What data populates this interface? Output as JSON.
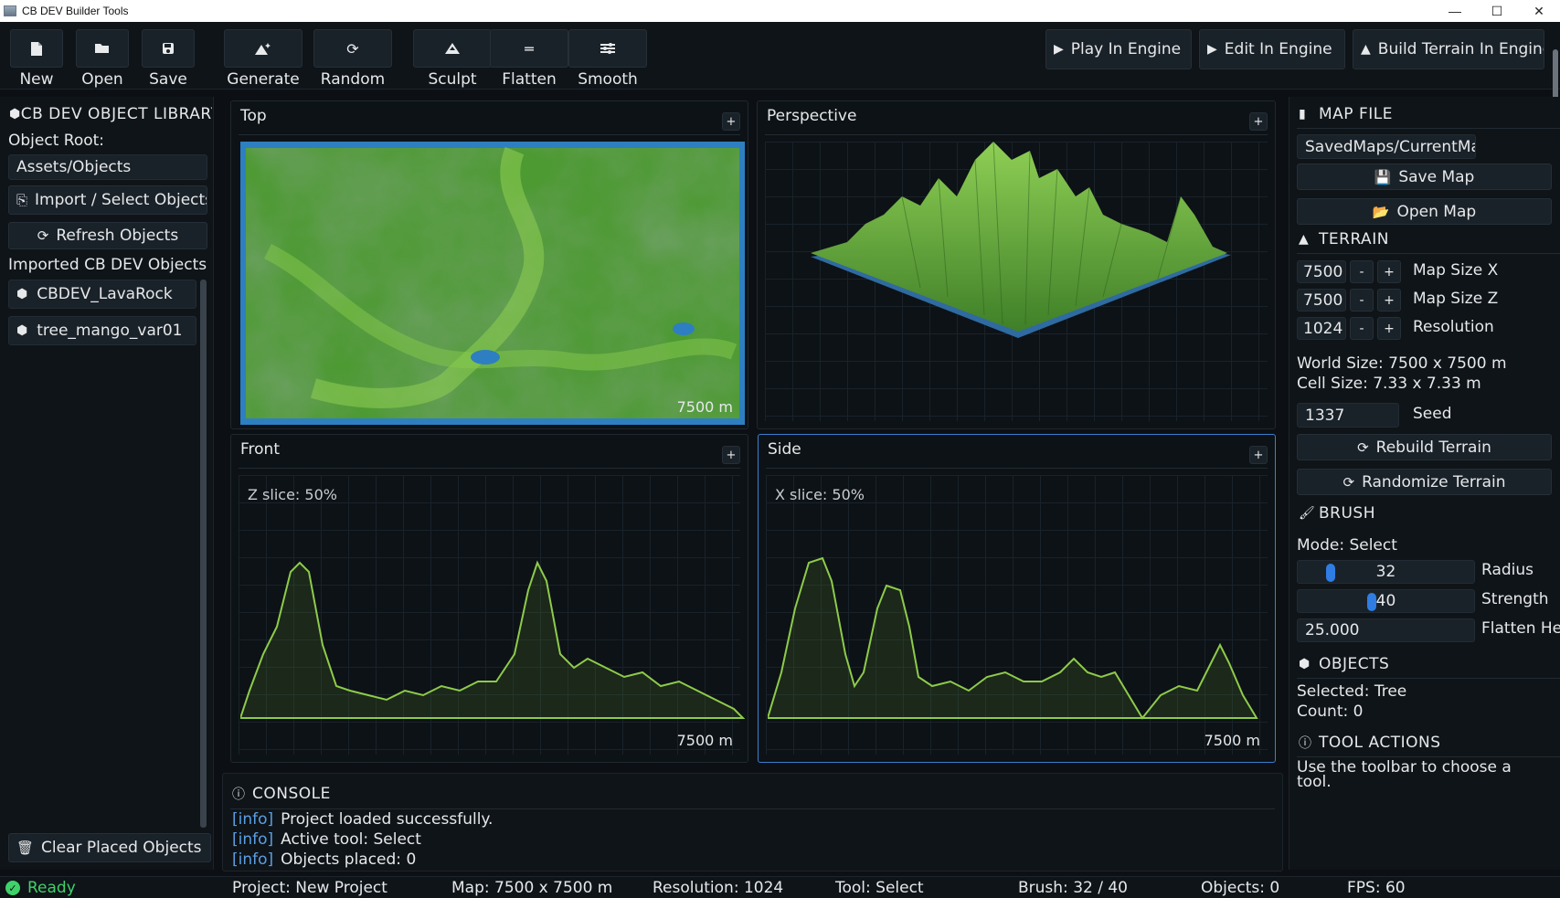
{
  "window": {
    "title": "CB DEV Builder Tools",
    "min": "—",
    "max": "☐",
    "close": "✕"
  },
  "toolbar": {
    "new": "New",
    "open": "Open",
    "save": "Save",
    "generate": "Generate",
    "random": "Random",
    "sculpt": "Sculpt",
    "flatten": "Flatten",
    "smooth": "Smooth",
    "play": "Play In Engine",
    "edit": "Edit In Engine",
    "build": "Build Terrain In Engine"
  },
  "library": {
    "title": "CB DEV OBJECT LIBRARY",
    "root_label": "Object Root:",
    "root_value": "Assets/Objects",
    "import": "Import / Select Objects",
    "refresh": "Refresh Objects",
    "imported_label": "Imported CB DEV Objects",
    "items": [
      "CBDEV_LavaRock",
      "tree_mango_var01"
    ],
    "clear": "Clear Placed Objects"
  },
  "viewports": {
    "top": {
      "title": "Top",
      "scale": "7500 m"
    },
    "perspective": {
      "title": "Perspective"
    },
    "front": {
      "title": "Front",
      "slice": "Z slice: 50%",
      "scale": "7500 m"
    },
    "side": {
      "title": "Side",
      "slice": "X slice: 50%",
      "scale": "7500 m"
    },
    "plus": "+"
  },
  "console": {
    "title": "CONSOLE",
    "lines": [
      {
        "tag": "[info]",
        "text": "Project loaded successfully."
      },
      {
        "tag": "[info]",
        "text": "Active tool: Select"
      },
      {
        "tag": "[info]",
        "text": "Objects placed: 0"
      }
    ]
  },
  "mapfile": {
    "title": "MAP FILE",
    "path": "SavedMaps/CurrentMap",
    "save": "Save Map",
    "open": "Open Map"
  },
  "terrain": {
    "title": "TERRAIN",
    "size_x": "7500",
    "size_x_label": "Map Size X",
    "size_z": "7500",
    "size_z_label": "Map Size Z",
    "res": "1024",
    "res_label": "Resolution",
    "minus": "-",
    "plus": "+",
    "world_size": "World Size: 7500 x 7500 m",
    "cell_size": "Cell Size: 7.33 x 7.33 m",
    "seed": "1337",
    "seed_label": "Seed",
    "rebuild": "Rebuild Terrain",
    "randomize": "Randomize Terrain"
  },
  "brush": {
    "title": "BRUSH",
    "mode": "Mode: Select",
    "radius": "32",
    "radius_label": "Radius",
    "radius_level": 0.15,
    "strength": "40",
    "strength_label": "Strength",
    "strength_level": 0.4,
    "flatten": "25.000",
    "flatten_label": "Flatten Height"
  },
  "objects": {
    "title": "OBJECTS",
    "selected": "Selected: Tree",
    "count": "Count: 0"
  },
  "tool_actions": {
    "title": "TOOL ACTIONS",
    "text": "Use the toolbar to choose a tool."
  },
  "status": {
    "ready": "Ready",
    "project": "Project: New Project",
    "map": "Map: 7500 x 7500 m",
    "resolution": "Resolution: 1024",
    "tool": "Tool: Select",
    "brush": "Brush: 32 / 40",
    "objects": "Objects: 0",
    "fps": "FPS: 60"
  },
  "colors": {
    "accent": "#2f7de3",
    "terrain_green": "#6fb43a",
    "water": "#2d7fc1",
    "ready": "#3fd26a",
    "info": "#5b9fe6"
  },
  "icons": {
    "new": "file-icon",
    "open": "folder-open-icon",
    "save": "floppy-icon",
    "generate": "mountain-sparkle-icon",
    "random": "refresh-icon",
    "sculpt": "mountain-icon",
    "flatten": "equals-icon",
    "smooth": "sliders-icon",
    "play": "play-icon"
  }
}
